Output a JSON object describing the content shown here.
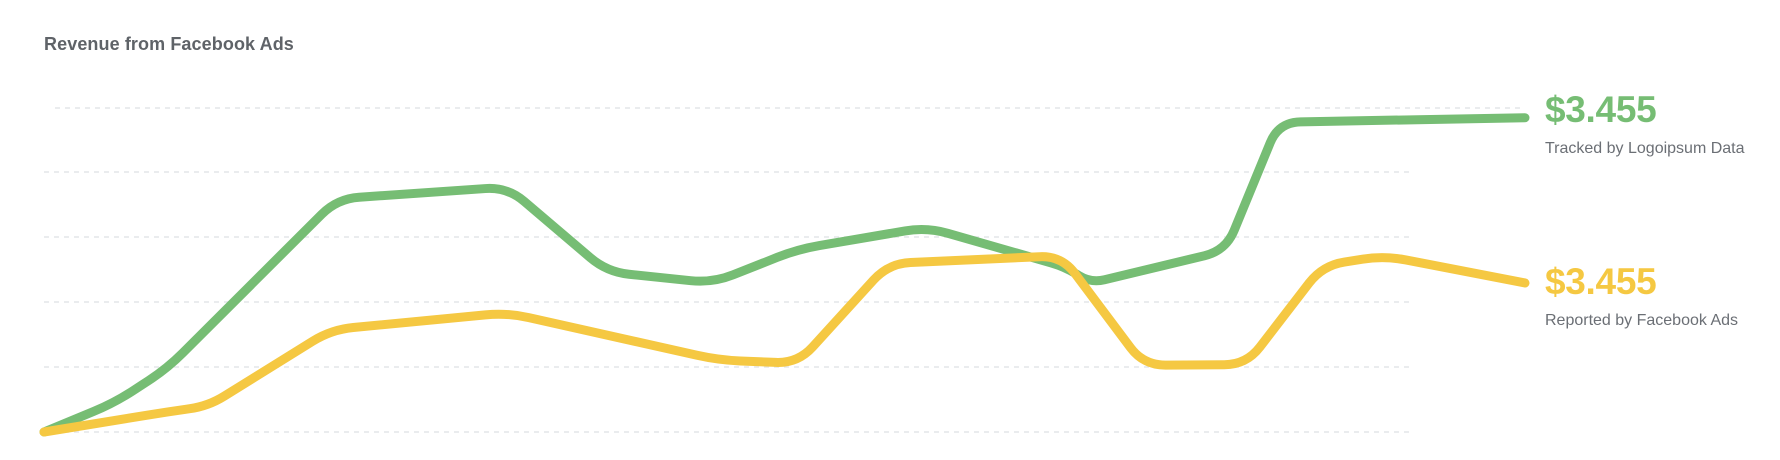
{
  "chart_data": {
    "type": "line",
    "title": "Revenue from Facebook Ads",
    "grid": true,
    "gridlines": 6,
    "ylim": [
      0,
      5
    ],
    "x": [
      0,
      1,
      2,
      3,
      4,
      5,
      6
    ],
    "series": [
      {
        "name": "Tracked by Logoipsum Data",
        "value_label": "$3.455",
        "color": "#76bd74",
        "x": [
          0,
          0.24,
          0.42,
          1,
          1.58,
          1.92,
          2.28,
          2.57,
          3.01,
          3.48,
          3.57,
          4.03,
          4.21,
          5.05
        ],
        "values": [
          0.0,
          0.45,
          0.98,
          3.6,
          3.78,
          2.47,
          2.3,
          2.82,
          3.16,
          2.55,
          2.3,
          2.8,
          4.78,
          4.85
        ]
      },
      {
        "name": "Reported by Facebook Ads",
        "value_label": "$3.455",
        "color": "#f5c842",
        "x": [
          0,
          0.42,
          0.56,
          0.98,
          1.58,
          2.3,
          2.57,
          2.88,
          3.47,
          3.75,
          4.1,
          4.36,
          4.57,
          5.05
        ],
        "values": [
          0.0,
          0.31,
          0.4,
          1.58,
          1.84,
          1.11,
          1.06,
          2.6,
          2.72,
          1.03,
          1.04,
          2.57,
          2.72,
          2.3
        ]
      }
    ]
  }
}
